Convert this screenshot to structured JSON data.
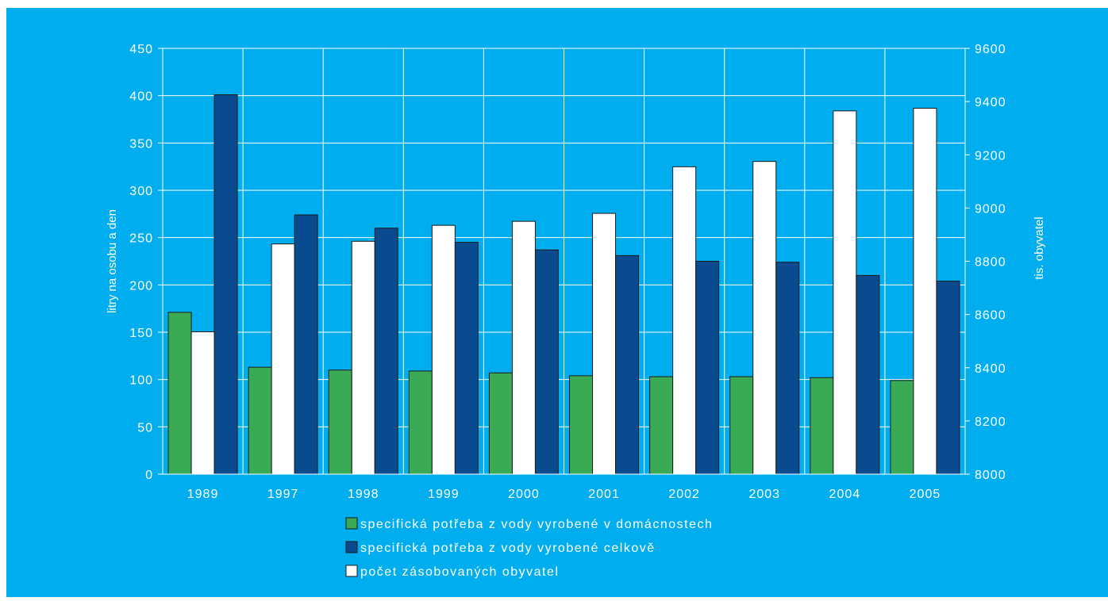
{
  "colors": {
    "background": "#00aeef",
    "grid": "#ffffff",
    "domestic": "#3aaa55",
    "total": "#0a4a8e",
    "population": "#ffffff",
    "bar_stroke": "#1a1a1a"
  },
  "chart_data": {
    "type": "bar",
    "categories": [
      "1989",
      "1997",
      "1998",
      "1999",
      "2000",
      "2001",
      "2002",
      "2003",
      "2004",
      "2005"
    ],
    "series": [
      {
        "name": "specifická potřeba z vody vyrobené v domácnostech",
        "axis": "left",
        "color": "#3aaa55",
        "values": [
          171,
          113,
          110,
          109,
          107,
          104,
          103,
          103,
          102,
          99
        ]
      },
      {
        "name": "počet zásobovaných obyvatel",
        "axis": "right",
        "color": "#ffffff",
        "values": [
          8535,
          8865,
          8875,
          8935,
          8950,
          8980,
          9155,
          9175,
          9365,
          9375
        ]
      },
      {
        "name": "specifická potřeba z vody vyrobené celkově",
        "axis": "left",
        "color": "#0a4a8e",
        "values": [
          401,
          274,
          260,
          245,
          237,
          231,
          225,
          224,
          210,
          204
        ]
      }
    ],
    "y_left": {
      "label": "litry na osobu a den",
      "min": 0,
      "max": 450,
      "ticks": [
        "0",
        "50",
        "100",
        "150",
        "200",
        "250",
        "300",
        "350",
        "400",
        "450"
      ]
    },
    "y_right": {
      "label": "tis. obyvatel",
      "min": 8000,
      "max": 9600,
      "ticks": [
        "8000",
        "8200",
        "8400",
        "8600",
        "8800",
        "9000",
        "9200",
        "9400",
        "9600"
      ]
    },
    "grid": true,
    "legend": {
      "position": "bottom",
      "entries": [
        {
          "label": "specifická potřeba z vody vyrobené v domácnostech",
          "color": "#3aaa55"
        },
        {
          "label": "specifická potřeba z vody vyrobené celkově",
          "color": "#0a4a8e"
        },
        {
          "label": "počet zásobovaných obyvatel",
          "color": "#ffffff"
        }
      ]
    }
  }
}
